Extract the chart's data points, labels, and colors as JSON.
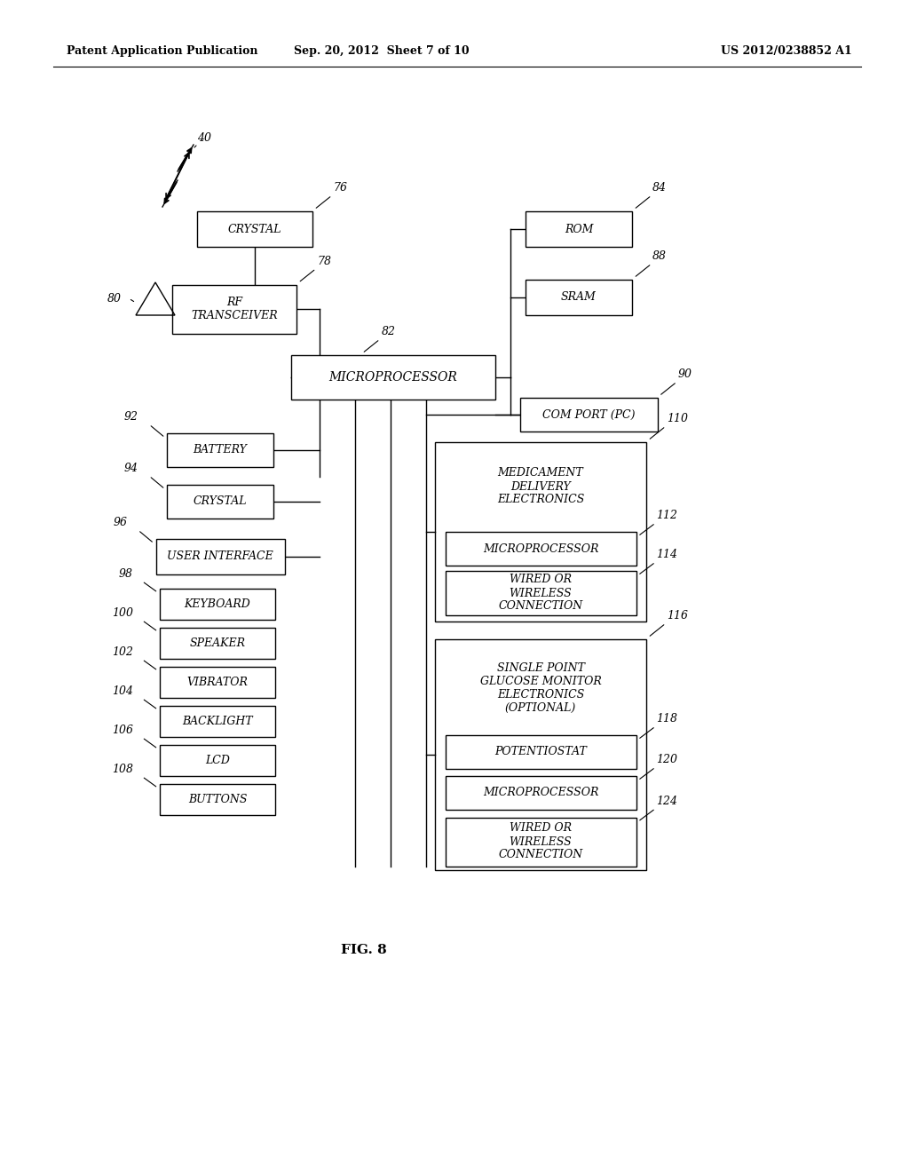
{
  "bg_color": "#ffffff",
  "header_left": "Patent Application Publication",
  "header_mid": "Sep. 20, 2012  Sheet 7 of 10",
  "header_right": "US 2012/0238852 A1",
  "caption": "FIG. 8"
}
